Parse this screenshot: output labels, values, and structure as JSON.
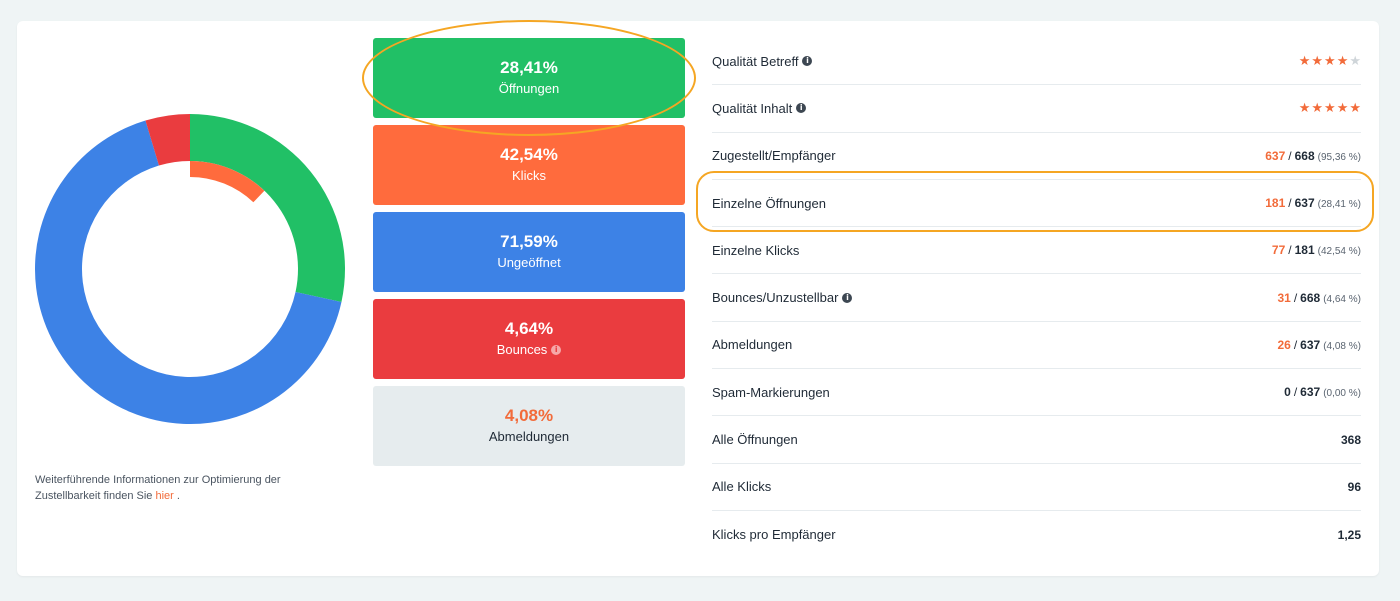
{
  "chart_data": {
    "type": "pie",
    "series": [
      {
        "name": "Öffnungen",
        "values": [
          28.41
        ],
        "color": "#21c066"
      },
      {
        "name": "Ungeöffnet",
        "values": [
          66.95
        ],
        "color": "#3d82e6"
      },
      {
        "name": "Bounces",
        "values": [
          4.64
        ],
        "color": "#ea3c3f"
      }
    ],
    "inner_ring": {
      "name": "Klicks",
      "value": 12.09,
      "color": "#ff6b3d"
    }
  },
  "colors": {
    "green": "#21c066",
    "orange": "#ff6b3d",
    "blue": "#3d82e6",
    "red": "#ea3c3f",
    "grey": "#e6ecee",
    "accent": "#f26b3a"
  },
  "footnote": {
    "text": "Weiterführende Informationen zur Optimierung der Zustellbarkeit finden Sie",
    "link": "hier",
    "tail": "."
  },
  "tiles": [
    {
      "value": "28,41%",
      "label": "Öffnungen",
      "color": "green"
    },
    {
      "value": "42,54%",
      "label": "Klicks",
      "color": "orange"
    },
    {
      "value": "71,59%",
      "label": "Ungeöffnet",
      "color": "blue"
    },
    {
      "value": "4,64%",
      "label": "Bounces",
      "color": "red",
      "info": true
    },
    {
      "value": "4,08%",
      "label": "Abmeldungen",
      "color": "grey"
    }
  ],
  "stats": {
    "subject_quality": {
      "label": "Qualität Betreff",
      "rating": 4,
      "max": 5
    },
    "content_quality": {
      "label": "Qualität Inhalt",
      "rating": 5,
      "max": 5
    },
    "delivered": {
      "label": "Zugestellt/Empfänger",
      "a": "637",
      "b": "668",
      "pct": "(95,36 %)"
    },
    "unique_opens": {
      "label": "Einzelne Öffnungen",
      "a": "181",
      "b": "637",
      "pct": "(28,41 %)"
    },
    "unique_clicks": {
      "label": "Einzelne Klicks",
      "a": "77",
      "b": "181",
      "pct": "(42,54 %)"
    },
    "bounces": {
      "label": "Bounces/Unzustellbar",
      "a": "31",
      "b": "668",
      "pct": "(4,64 %)"
    },
    "unsubscribes": {
      "label": "Abmeldungen",
      "a": "26",
      "b": "637",
      "pct": "(4,08 %)"
    },
    "spam": {
      "label": "Spam-Markierungen",
      "a": "0",
      "b": "637",
      "pct": "(0,00 %)"
    },
    "all_opens": {
      "label": "Alle Öffnungen",
      "value": "368"
    },
    "all_clicks": {
      "label": "Alle Klicks",
      "value": "96"
    },
    "clicks_per_recipient": {
      "label": "Klicks pro Empfänger",
      "value": "1,25"
    }
  },
  "separator": "/",
  "info_glyph": "i"
}
